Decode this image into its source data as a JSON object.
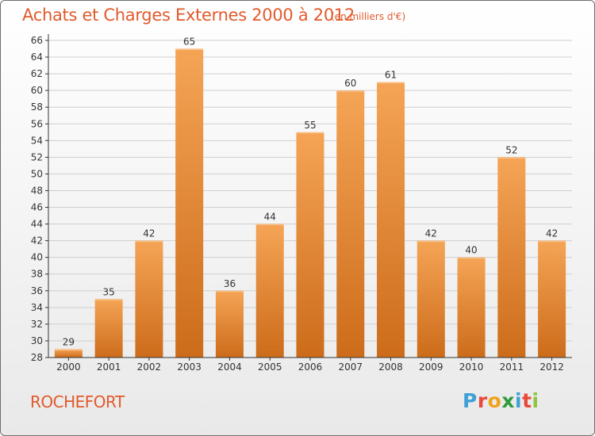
{
  "colors": {
    "accent": "#e15a2c",
    "bar_light": "#f5a456",
    "bar_dark": "#cc6c1a",
    "grid": "#cfcfcf",
    "axis": "#333333"
  },
  "place_name": "ROCHEFORT",
  "brand": {
    "text": "Proxiti",
    "letter_colors": [
      "#3fa0d8",
      "#e94a3b",
      "#f2a21a",
      "#2e9b3c",
      "#3fa0d8",
      "#e94a3b",
      "#8cc63e"
    ]
  },
  "chart_data": {
    "type": "bar",
    "title": "Achats et Charges Externes 2000 à 2012",
    "subtitle": "(en milliers d'€)",
    "xlabel": "",
    "ylabel": "",
    "categories": [
      "2000",
      "2001",
      "2002",
      "2003",
      "2004",
      "2005",
      "2006",
      "2007",
      "2008",
      "2009",
      "2010",
      "2011",
      "2012"
    ],
    "values": [
      29,
      35,
      42,
      65,
      36,
      44,
      55,
      60,
      61,
      42,
      40,
      52,
      42
    ],
    "ylim": [
      28,
      66
    ],
    "ytick_step": 2,
    "grid": true,
    "data_labels": true,
    "legend": "none"
  }
}
